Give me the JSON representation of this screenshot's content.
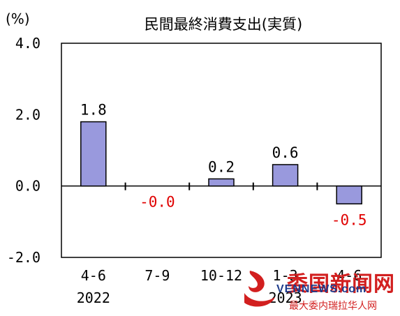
{
  "chart_data": {
    "type": "bar",
    "title": "民間最終消費支出(実質)",
    "y_unit": "(%)",
    "categories": [
      "4-6",
      "7-9",
      "10-12",
      "1-3",
      "4-6"
    ],
    "year_labels": [
      {
        "index": 0,
        "label": "2022"
      },
      {
        "index": 3,
        "label": "2023"
      }
    ],
    "values": [
      1.8,
      -0.0,
      0.2,
      0.6,
      -0.5
    ],
    "data_labels": [
      "1.8",
      "-0.0",
      "0.2",
      "0.6",
      "-0.5"
    ],
    "yticks": [
      "4.0",
      "2.0",
      "0.0",
      "-2.0"
    ],
    "ytick_values": [
      4.0,
      2.0,
      0.0,
      -2.0
    ],
    "ylim": [
      -2.0,
      4.0
    ],
    "grid": false,
    "colors": {
      "bar_fill": "#9999dd",
      "bar_stroke": "#000000",
      "positive_label": "#000000",
      "negative_label": "#e00000"
    }
  },
  "watermark": {
    "main": "委国新闻网",
    "url": "VENNEWS.com",
    "sub": "最大委内瑞拉华人网"
  }
}
